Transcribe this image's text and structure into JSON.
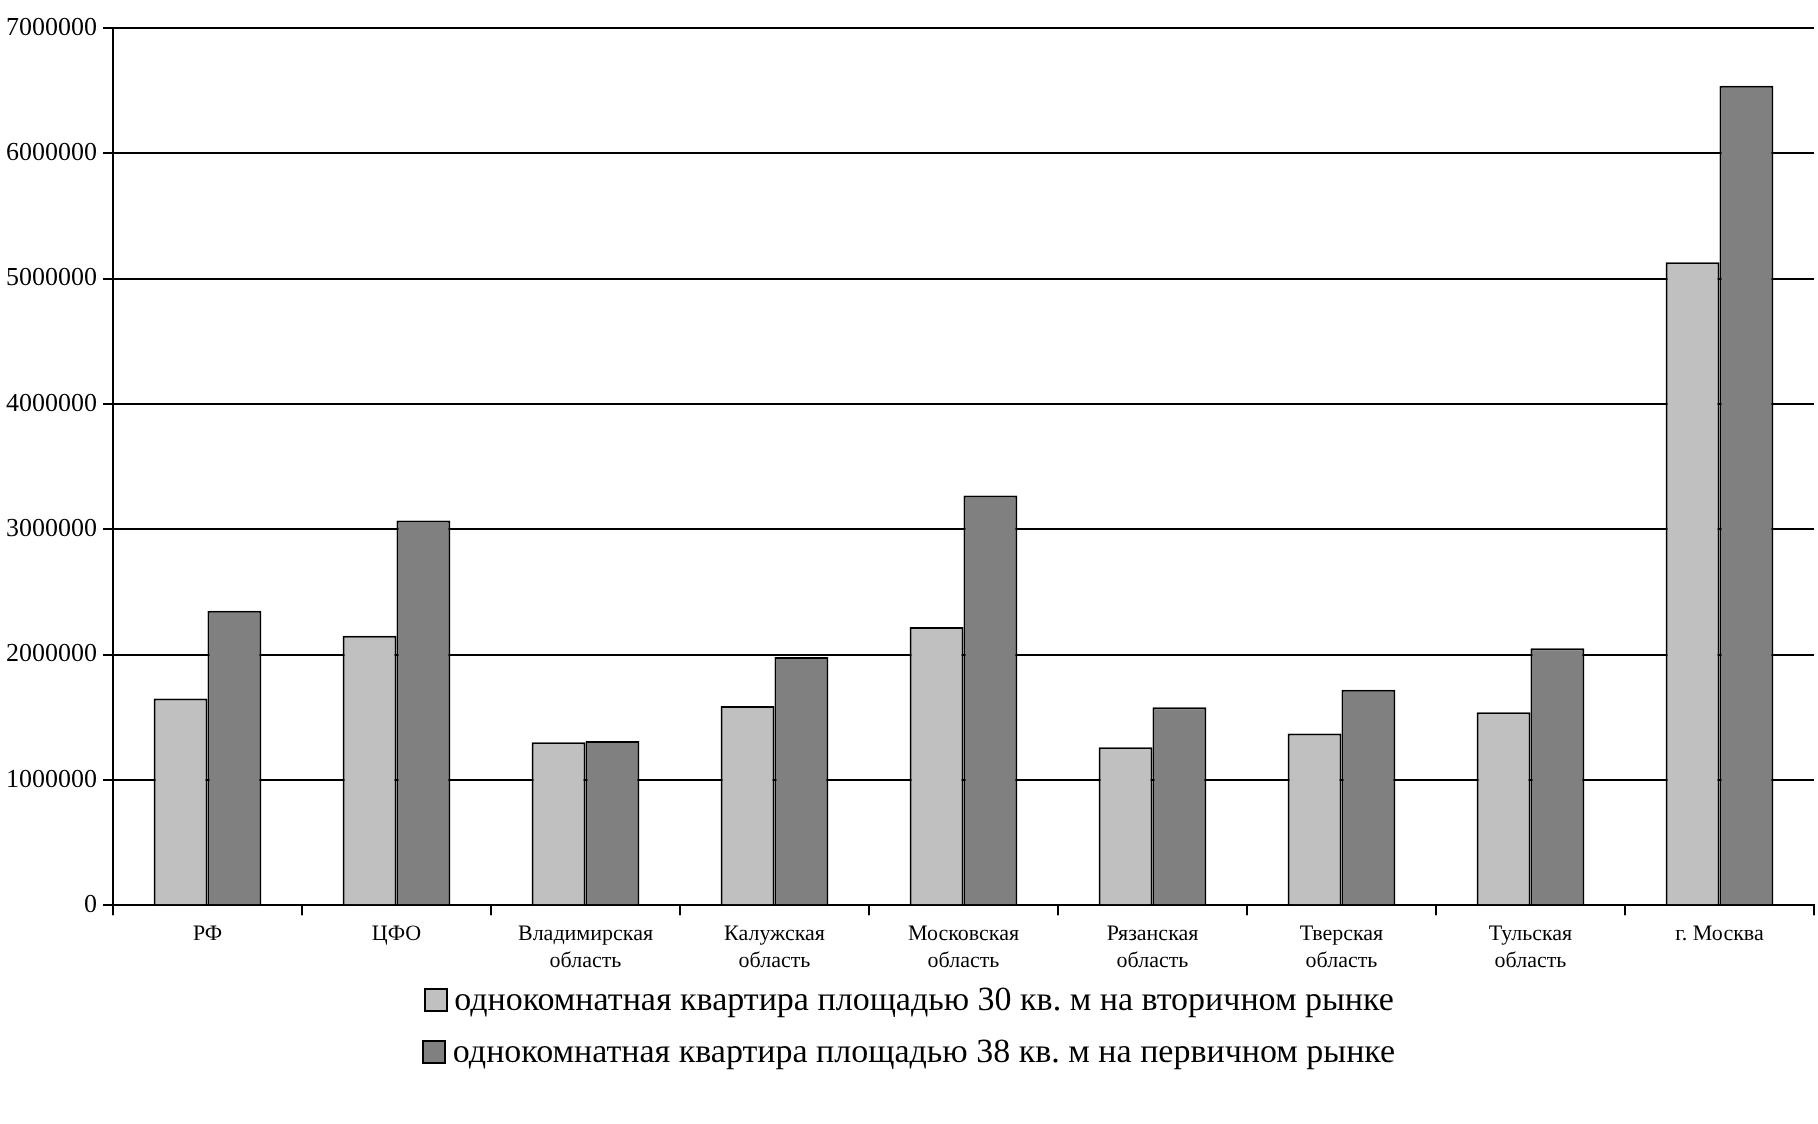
{
  "chart_data": {
    "type": "bar",
    "categories": [
      "РФ",
      "ЦФО",
      "Владимирская\nобласть",
      "Калужская\nобласть",
      "Московская\nобласть",
      "Рязанская\nобласть",
      "Тверская\nобласть",
      "Тульская\nобласть",
      "г. Москва"
    ],
    "series": [
      {
        "name": "однокомнатная квартира площадью 30 кв. м на вторичном рынке",
        "color": "#c0c0c0",
        "values": [
          1650000,
          2150000,
          1300000,
          1590000,
          2220000,
          1260000,
          1370000,
          1540000,
          5130000
        ]
      },
      {
        "name": "однокомнатная квартира площадью 38 кв. м на первичном рынке",
        "color": "#808080",
        "values": [
          2350000,
          3070000,
          1310000,
          1980000,
          3270000,
          1580000,
          1720000,
          2050000,
          6540000
        ]
      }
    ],
    "ylim": [
      0,
      7000000
    ],
    "yticks": [
      0,
      1000000,
      2000000,
      3000000,
      4000000,
      5000000,
      6000000,
      7000000
    ],
    "grid": "y",
    "legend": "bottom"
  }
}
